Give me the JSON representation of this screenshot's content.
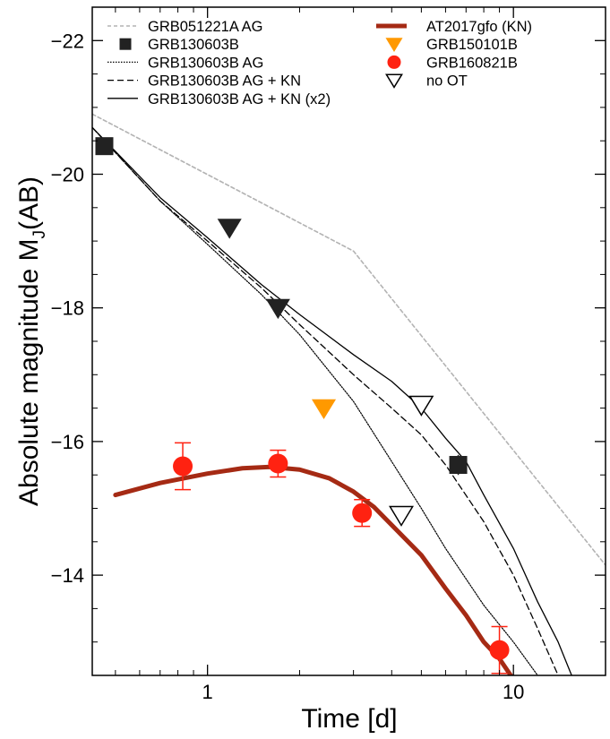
{
  "chart_data": {
    "type": "line",
    "xlabel": "Time [d]",
    "ylabel": "Absolute magnitude  M",
    "ylabel_sub": "J",
    "ylabel_tail": "(AB)",
    "xscale": "log",
    "xlim": [
      0.42,
      20
    ],
    "ylim": [
      -12.5,
      -22.5
    ],
    "x_ticks": [
      {
        "value": 1,
        "label": "1"
      },
      {
        "value": 10,
        "label": "10"
      }
    ],
    "y_ticks": [
      {
        "value": -22,
        "label": "−22"
      },
      {
        "value": -20,
        "label": "−20"
      },
      {
        "value": -18,
        "label": "−18"
      },
      {
        "value": -16,
        "label": "−16"
      },
      {
        "value": -14,
        "label": "−14"
      }
    ],
    "grid": false,
    "legend_placement": "top",
    "legend": [
      {
        "label": "GRB051221A AG",
        "kind": "line",
        "color": "#b3b3b3",
        "dash": "4 3",
        "width": 1.6,
        "column": 0
      },
      {
        "label": "GRB130603B",
        "kind": "square",
        "color": "#222222",
        "column": 0
      },
      {
        "label": "GRB130603B AG",
        "kind": "line",
        "color": "#000000",
        "dash": "1.5 1.5",
        "width": 1.2,
        "column": 0
      },
      {
        "label": "GRB130603B AG + KN",
        "kind": "line",
        "color": "#000000",
        "dash": "7 4",
        "width": 1.3,
        "column": 0
      },
      {
        "label": "GRB130603B AG + KN (x2)",
        "kind": "line",
        "color": "#000000",
        "dash": "",
        "width": 1.3,
        "column": 0
      },
      {
        "label": "AT2017gfo (KN)",
        "kind": "line",
        "color": "#a52a14",
        "dash": "",
        "width": 5,
        "column": 1
      },
      {
        "label": "GRB150101B",
        "kind": "triangle-down",
        "color": "#ff9900",
        "column": 1
      },
      {
        "label": "GRB160821B",
        "kind": "circle",
        "color": "#ff2211",
        "column": 1
      },
      {
        "label": "no OT",
        "kind": "triangle-down-open",
        "color": "#000000",
        "column": 1
      }
    ],
    "series": [
      {
        "name": "GRB051221A AG",
        "kind": "line",
        "color": "#b3b3b3",
        "dash": "4 3",
        "width": 1.6,
        "x": [
          0.42,
          3.0,
          20
        ],
        "y": [
          -20.9,
          -18.85,
          -14.15
        ]
      },
      {
        "name": "GRB130603B AG",
        "kind": "line",
        "color": "#000000",
        "dash": "1.5 1.5",
        "width": 1.2,
        "x": [
          0.42,
          0.7,
          1.0,
          1.5,
          2.0,
          3.0,
          4.0,
          5.0,
          6.0,
          8.0,
          10.0,
          12.0
        ],
        "y": [
          -20.7,
          -19.6,
          -18.95,
          -18.2,
          -17.6,
          -16.6,
          -15.7,
          -15.0,
          -14.4,
          -13.55,
          -13.0,
          -12.5
        ]
      },
      {
        "name": "GRB130603B AG + KN",
        "kind": "line",
        "color": "#000000",
        "dash": "7 4",
        "width": 1.3,
        "x": [
          0.42,
          0.7,
          1.0,
          1.5,
          2.0,
          3.0,
          4.0,
          5.0,
          6.0,
          8.0,
          10.0,
          12.0,
          14.0
        ],
        "y": [
          -20.7,
          -19.6,
          -19.0,
          -18.3,
          -17.75,
          -17.0,
          -16.5,
          -16.1,
          -15.65,
          -14.8,
          -14.0,
          -13.2,
          -12.5
        ]
      },
      {
        "name": "GRB130603B AG + KN (x2)",
        "kind": "line",
        "color": "#000000",
        "dash": "",
        "width": 1.3,
        "x": [
          0.42,
          0.7,
          1.0,
          1.5,
          2.0,
          3.0,
          4.0,
          5.0,
          6.0,
          7.0,
          8.0,
          10.0,
          12.0,
          14.0,
          15.5
        ],
        "y": [
          -20.7,
          -19.65,
          -19.05,
          -18.35,
          -17.9,
          -17.3,
          -16.9,
          -16.5,
          -16.05,
          -15.7,
          -15.2,
          -14.4,
          -13.6,
          -13.0,
          -12.5
        ]
      },
      {
        "name": "AT2017gfo (KN)",
        "kind": "line",
        "color": "#a52a14",
        "dash": "",
        "width": 5,
        "x": [
          0.5,
          0.7,
          1.0,
          1.3,
          1.6,
          2.0,
          2.5,
          3.0,
          3.5,
          4.0,
          5.0,
          6.0,
          7.0,
          8.0,
          9.0,
          9.8
        ],
        "y": [
          -15.2,
          -15.38,
          -15.52,
          -15.6,
          -15.62,
          -15.58,
          -15.45,
          -15.25,
          -15.02,
          -14.75,
          -14.3,
          -13.8,
          -13.4,
          -13.0,
          -12.75,
          -12.5
        ]
      },
      {
        "name": "GRB130603B",
        "kind": "square",
        "color": "#222222",
        "x": [
          0.46,
          6.6
        ],
        "y": [
          -20.42,
          -15.65
        ],
        "yerr": [
          0,
          0.15
        ]
      },
      {
        "name": "GRB130603B limits",
        "kind": "triangle-down",
        "color": "#222222",
        "x": [
          1.18,
          1.7
        ],
        "y": [
          -19.2,
          -18.0
        ]
      },
      {
        "name": "GRB150101B",
        "kind": "triangle-down",
        "color": "#ff9900",
        "x": [
          2.4
        ],
        "y": [
          -16.5
        ]
      },
      {
        "name": "GRB160821B",
        "kind": "circle",
        "color": "#ff2211",
        "x": [
          0.83,
          1.7,
          3.2,
          9.0
        ],
        "y": [
          -15.63,
          -15.67,
          -14.93,
          -12.88
        ],
        "yerr": [
          0.35,
          0.2,
          0.2,
          0.35
        ]
      },
      {
        "name": "no OT",
        "kind": "triangle-down-open",
        "color": "#000000",
        "x": [
          4.3,
          5.0
        ],
        "y": [
          -14.9,
          -16.55
        ]
      }
    ]
  }
}
